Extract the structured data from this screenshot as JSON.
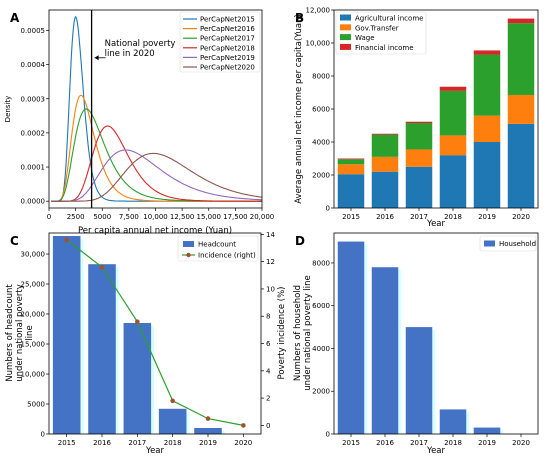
{
  "colors": {
    "blue": "#1f77b4",
    "orange": "#ff7f0e",
    "green": "#2ca02c",
    "red": "#d62728",
    "purple": "#9467bd",
    "brown": "#8c564b",
    "bar_blue": "#4472c4",
    "shadow": "#d6ffff",
    "line_brown": "#a0522d"
  },
  "chart_data": [
    {
      "panel": "A",
      "type": "line",
      "xlabel": "Per capita annual net income (Yuan)",
      "ylabel": "Density",
      "xlim": [
        0,
        20000
      ],
      "ylim": [
        -2e-05,
        0.00056
      ],
      "xticks": [
        0,
        2500,
        5000,
        7500,
        10000,
        12500,
        15000,
        17500,
        20000
      ],
      "xtick_labels": [
        "0",
        "2500",
        "5000",
        "7,500",
        "10,000",
        "12,500",
        "15,000",
        "17,500",
        "20,000"
      ],
      "yticks": [
        0.0,
        0.0001,
        0.0002,
        0.0003,
        0.0004,
        0.0005
      ],
      "ytick_labels": [
        "0.0000",
        "0.0001",
        "0.0002",
        "0.0003",
        "0.0004",
        "0.0005"
      ],
      "legend": "top-right",
      "annotation": {
        "lines": [
          "National poverty",
          "line in 2020"
        ],
        "x": 4000
      },
      "series": [
        {
          "name": "PerCapNet2015",
          "color": "#1f77b4",
          "peak_x": 2500,
          "peak_y": 0.00054,
          "sigma": 0.25
        },
        {
          "name": "PerCapNet2016",
          "color": "#ff7f0e",
          "peak_x": 3000,
          "peak_y": 0.00031,
          "sigma": 0.35
        },
        {
          "name": "PerCapNet2017",
          "color": "#2ca02c",
          "peak_x": 3500,
          "peak_y": 0.00027,
          "sigma": 0.4
        },
        {
          "name": "PerCapNet2018",
          "color": "#d62728",
          "peak_x": 5500,
          "peak_y": 0.00022,
          "sigma": 0.3
        },
        {
          "name": "PerCapNet2019",
          "color": "#9467bd",
          "peak_x": 7200,
          "peak_y": 0.00015,
          "sigma": 0.38
        },
        {
          "name": "PerCapNet2020",
          "color": "#8c564b",
          "peak_x": 9800,
          "peak_y": 0.00014,
          "sigma": 0.32
        }
      ]
    },
    {
      "panel": "B",
      "type": "bar",
      "stacked": true,
      "xlabel": "Year",
      "ylabel": "Average annual net income per capita(Yuan)",
      "categories": [
        "2015",
        "2016",
        "2017",
        "2018",
        "2019",
        "2020"
      ],
      "ylim": [
        0,
        12000
      ],
      "yticks": [
        0,
        2000,
        4000,
        6000,
        8000,
        10000,
        12000
      ],
      "ytick_labels": [
        "0",
        "2000",
        "4000",
        "6000",
        "8000",
        "10,000",
        "12,000"
      ],
      "legend": "top-left",
      "series": [
        {
          "name": "Agricultural income",
          "color": "#1f77b4",
          "values": [
            2050,
            2200,
            2500,
            3200,
            4000,
            5100
          ]
        },
        {
          "name": "Gov.Transfer",
          "color": "#ff7f0e",
          "values": [
            600,
            900,
            1050,
            1200,
            1600,
            1750
          ]
        },
        {
          "name": "Wage",
          "color": "#2ca02c",
          "values": [
            300,
            1350,
            1600,
            2700,
            3700,
            4350
          ]
        },
        {
          "name": "Financial income",
          "color": "#d62728",
          "values": [
            50,
            50,
            80,
            250,
            250,
            280
          ]
        }
      ]
    },
    {
      "panel": "C",
      "type": "bar",
      "xlabel": "Year",
      "ylabel_lines": [
        "Numbers of headcount",
        "under national poverty",
        "line"
      ],
      "ylabel_right": "Poverty incidence (%)",
      "categories": [
        "2015",
        "2016",
        "2017",
        "2018",
        "2019",
        "2020"
      ],
      "ylim": [
        0,
        33500
      ],
      "yticks": [
        0,
        5000,
        10000,
        15000,
        20000,
        25000,
        30000
      ],
      "ytick_labels": [
        "0",
        "5000",
        "10,000",
        "15,000",
        "20,000",
        "25,000",
        "30,000"
      ],
      "ylim_right": [
        -0.63,
        14.1
      ],
      "yticks_right": [
        0,
        2,
        4,
        6,
        8,
        10,
        12,
        14
      ],
      "ytick_labels_right": [
        "0",
        "2",
        "4",
        "6",
        "8",
        "10",
        "12",
        "14"
      ],
      "legend": "top-right",
      "series": [
        {
          "name": "Headcount",
          "color": "#4472c4",
          "values": [
            33000,
            28300,
            18500,
            4200,
            1000,
            0
          ]
        },
        {
          "name": "Incidence (right)",
          "color": "#a0522d",
          "type": "line",
          "values": [
            13.6,
            11.6,
            7.6,
            1.8,
            0.5,
            0.0
          ]
        }
      ]
    },
    {
      "panel": "D",
      "type": "bar",
      "xlabel": "Year",
      "ylabel_lines": [
        "Numbers of household",
        "under national poverty line"
      ],
      "categories": [
        "2015",
        "2016",
        "2017",
        "2018",
        "2019",
        "2020"
      ],
      "ylim": [
        0,
        9400
      ],
      "yticks": [
        0,
        2000,
        4000,
        6000,
        8000
      ],
      "ytick_labels": [
        "0",
        "2000",
        "4000",
        "6000",
        "8000"
      ],
      "legend": "top-right",
      "series": [
        {
          "name": "Household",
          "color": "#4472c4",
          "values": [
            9000,
            7800,
            5000,
            1150,
            300,
            0
          ]
        }
      ]
    }
  ]
}
